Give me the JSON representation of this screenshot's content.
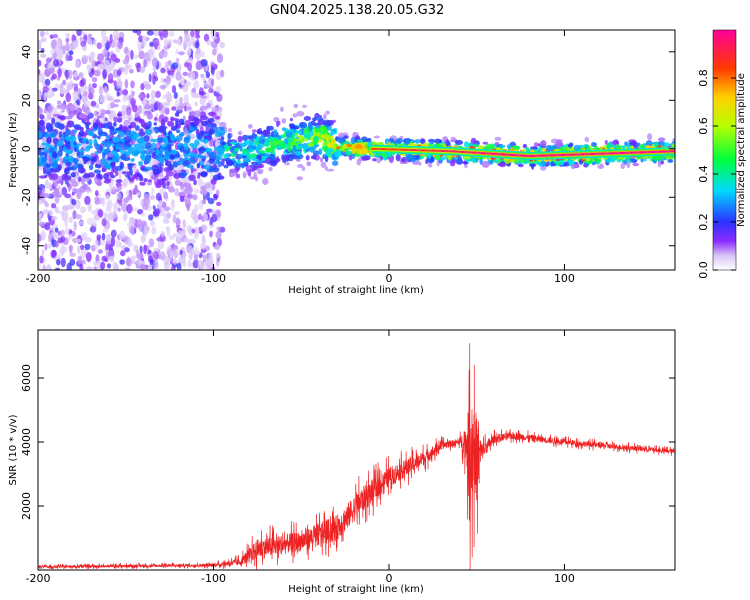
{
  "title": "GN04.2025.138.20.05.G32",
  "chart_data": [
    {
      "type": "heatmap",
      "xlabel": "Height of straight line (km)",
      "ylabel": "Frequency (Hz)",
      "xlim": [
        -200,
        163
      ],
      "ylim": [
        -50,
        49
      ],
      "x_ticks": [
        -200,
        -100,
        0,
        100
      ],
      "y_ticks": [
        -40,
        -20,
        0,
        20,
        40
      ],
      "colorbar": {
        "label": "Normalized spectral amplitude",
        "range": [
          0,
          1
        ],
        "ticks": [
          "0.0",
          "0.2",
          "0.4",
          "0.6",
          "0.8"
        ],
        "colormap": [
          "#ffffff",
          "#b98bf2",
          "#7a0cff",
          "#2233ff",
          "#00d9ff",
          "#00ff3c",
          "#c8ff00",
          "#ffcc00",
          "#ff3300",
          "#ff0099"
        ]
      },
      "ridge": [
        {
          "x": -200,
          "f": 0
        },
        {
          "x": -100,
          "f": 0
        },
        {
          "x": -85,
          "f": -2
        },
        {
          "x": -65,
          "f": 2
        },
        {
          "x": -40,
          "f": 5
        },
        {
          "x": -30,
          "f": 1
        },
        {
          "x": -10,
          "f": 0
        },
        {
          "x": 35,
          "f": -1
        },
        {
          "x": 80,
          "f": -3
        },
        {
          "x": 163,
          "f": -1
        }
      ],
      "peak_amplitude": [
        {
          "x": -200,
          "a": 0.35
        },
        {
          "x": -100,
          "a": 0.4
        },
        {
          "x": -85,
          "a": 0.45
        },
        {
          "x": -50,
          "a": 0.55
        },
        {
          "x": -30,
          "a": 0.75
        },
        {
          "x": -10,
          "a": 0.85
        },
        {
          "x": 20,
          "a": 0.9
        },
        {
          "x": 60,
          "a": 1.0
        },
        {
          "x": 163,
          "a": 1.0
        }
      ],
      "scatter_noise": {
        "x_range": [
          -200,
          -95
        ],
        "f_range": [
          -50,
          49
        ]
      }
    },
    {
      "type": "line",
      "xlabel": "Height of straight line (km)",
      "ylabel": "SNR (10 * v/v)",
      "xlim": [
        -200,
        163
      ],
      "ylim": [
        0,
        7500
      ],
      "x_ticks": [
        -200,
        -100,
        0,
        100
      ],
      "y_ticks": [
        2000,
        4000,
        6000
      ],
      "series": [
        {
          "color": "#ee2222",
          "envelope": [
            {
              "x": -200,
              "base": 100,
              "amp": 80
            },
            {
              "x": -100,
              "base": 150,
              "amp": 100
            },
            {
              "x": -85,
              "base": 250,
              "amp": 250
            },
            {
              "x": -75,
              "base": 650,
              "amp": 700
            },
            {
              "x": -50,
              "base": 900,
              "amp": 700
            },
            {
              "x": -30,
              "base": 1300,
              "amp": 900
            },
            {
              "x": -15,
              "base": 2200,
              "amp": 900
            },
            {
              "x": 0,
              "base": 2900,
              "amp": 700
            },
            {
              "x": 20,
              "base": 3500,
              "amp": 500
            },
            {
              "x": 30,
              "base": 3900,
              "amp": 300
            },
            {
              "x": 40,
              "base": 4000,
              "amp": 200
            },
            {
              "x": 44,
              "base": 4000,
              "amp": 1200
            },
            {
              "x": 46,
              "base": 3500,
              "amp": 4000
            },
            {
              "x": 48,
              "base": 3800,
              "amp": 3800
            },
            {
              "x": 50,
              "base": 3500,
              "amp": 3000
            },
            {
              "x": 53,
              "base": 3700,
              "amp": 600
            },
            {
              "x": 60,
              "base": 4100,
              "amp": 300
            },
            {
              "x": 70,
              "base": 4200,
              "amp": 250
            },
            {
              "x": 100,
              "base": 4000,
              "amp": 200
            },
            {
              "x": 130,
              "base": 3850,
              "amp": 180
            },
            {
              "x": 163,
              "base": 3700,
              "amp": 150
            }
          ]
        }
      ]
    }
  ]
}
